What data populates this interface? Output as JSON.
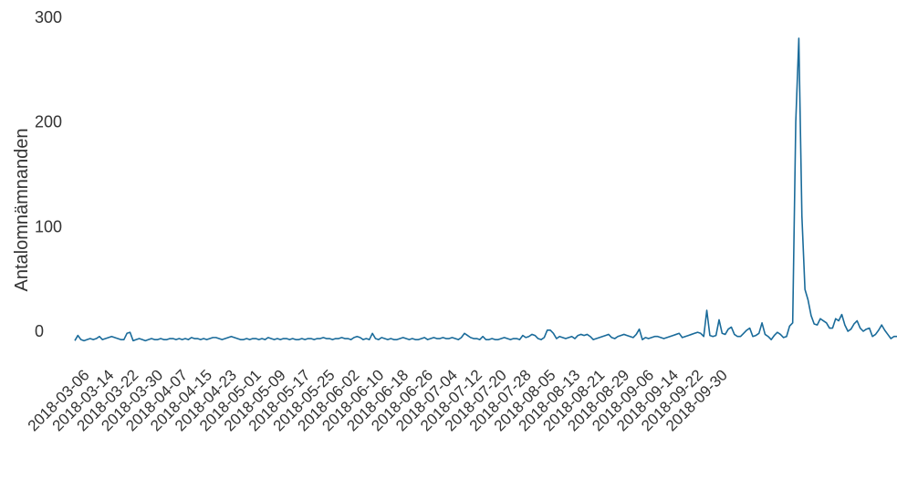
{
  "chart_data": {
    "type": "line",
    "title": "",
    "xlabel": "",
    "ylabel": "Antalomnämnanden",
    "ylim": [
      -10,
      300
    ],
    "yticks": [
      0,
      100,
      200,
      300
    ],
    "grid": false,
    "color": "#1a6b9a",
    "xtick_labels": [
      "2018-03-06",
      "2018-03-14",
      "2018-03-22",
      "2018-03-30",
      "2018-04-07",
      "2018-04-15",
      "2018-04-23",
      "2018-05-01",
      "2018-05-09",
      "2018-05-17",
      "2018-05-25",
      "2018-06-02",
      "2018-06-10",
      "2018-06-18",
      "2018-06-26",
      "2018-07-04",
      "2018-07-12",
      "2018-07-20",
      "2018-07-28",
      "2018-08-05",
      "2018-08-13",
      "2018-08-21",
      "2018-08-29",
      "2018-09-06",
      "2018-09-14",
      "2018-09-22",
      "2018-09-30"
    ],
    "start_date": "2018-03-01",
    "series": [
      {
        "values": [
          -9,
          -4,
          -8,
          -9,
          -8,
          -7,
          -8,
          -7,
          -5,
          -8,
          -7,
          -6,
          -5,
          -6,
          -7,
          -8,
          -8,
          -2,
          -1,
          -9,
          -8,
          -7,
          -8,
          -9,
          -8,
          -7,
          -8,
          -8,
          -7,
          -8,
          -8,
          -7,
          -7,
          -8,
          -7,
          -8,
          -7,
          -8,
          -6,
          -7,
          -7,
          -8,
          -7,
          -8,
          -7,
          -6,
          -6,
          -7,
          -8,
          -7,
          -6,
          -5,
          -6,
          -7,
          -8,
          -8,
          -7,
          -8,
          -7,
          -7,
          -8,
          -7,
          -8,
          -6,
          -7,
          -8,
          -7,
          -8,
          -7,
          -7,
          -8,
          -7,
          -8,
          -8,
          -7,
          -8,
          -7,
          -7,
          -8,
          -7,
          -7,
          -6,
          -7,
          -7,
          -8,
          -7,
          -7,
          -6,
          -7,
          -7,
          -8,
          -6,
          -5,
          -6,
          -8,
          -7,
          -8,
          -2,
          -7,
          -8,
          -6,
          -7,
          -8,
          -7,
          -8,
          -8,
          -7,
          -6,
          -7,
          -8,
          -7,
          -8,
          -8,
          -7,
          -6,
          -8,
          -7,
          -6,
          -7,
          -7,
          -6,
          -7,
          -7,
          -6,
          -7,
          -8,
          -6,
          -2,
          -4,
          -6,
          -7,
          -7,
          -8,
          -5,
          -8,
          -8,
          -7,
          -8,
          -8,
          -7,
          -6,
          -7,
          -8,
          -7,
          -7,
          -8,
          -4,
          -6,
          -5,
          -3,
          -4,
          -7,
          -8,
          -6,
          1,
          1,
          -2,
          -7,
          -5,
          -6,
          -7,
          -6,
          -5,
          -7,
          -4,
          -3,
          -4,
          -3,
          -5,
          -8,
          -7,
          -6,
          -5,
          -4,
          -3,
          -6,
          -7,
          -5,
          -4,
          -3,
          -4,
          -5,
          -6,
          -3,
          2,
          -8,
          -6,
          -7,
          -6,
          -5,
          -5,
          -6,
          -7,
          -6,
          -5,
          -4,
          -3,
          -2,
          -6,
          -5,
          -4,
          -3,
          -2,
          -1,
          -2,
          -5,
          20,
          -4,
          -5,
          -4,
          11,
          -2,
          -3,
          2,
          4,
          -3,
          -5,
          -5,
          -2,
          1,
          3,
          -5,
          -4,
          -2,
          8,
          -3,
          -5,
          -8,
          -4,
          -1,
          -3,
          -6,
          -5,
          5,
          8,
          200,
          280,
          110,
          40,
          30,
          15,
          7,
          6,
          12,
          10,
          8,
          3,
          3,
          12,
          10,
          16,
          6,
          0,
          2,
          7,
          10,
          3,
          0,
          2,
          3,
          -5,
          -3,
          1,
          6,
          1,
          -3,
          -7,
          -5,
          -5
        ]
      }
    ]
  }
}
